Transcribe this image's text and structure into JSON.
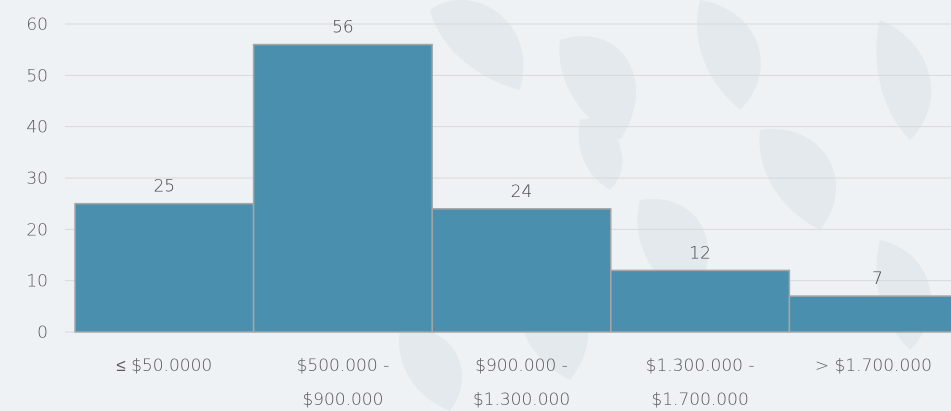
{
  "chart_data": {
    "type": "bar",
    "categories": [
      [
        "≤ $50.0000"
      ],
      [
        "$500.000 -",
        "$900.000"
      ],
      [
        "$900.000 -",
        "$1.300.000"
      ],
      [
        "$1.300.000 -",
        "$1.700.000"
      ],
      [
        "> $1.700.000"
      ]
    ],
    "values": [
      25,
      56,
      24,
      12,
      7
    ],
    "ylim": [
      0,
      60
    ],
    "yticks": [
      0,
      10,
      20,
      30,
      40,
      50,
      60
    ],
    "grid": true,
    "data_labels": true,
    "bar_color": "#4a90ae",
    "bar_edge_color": "#a6a6a6",
    "grid_color": "#d9d9d9",
    "title": "",
    "xlabel": "",
    "ylabel": ""
  }
}
